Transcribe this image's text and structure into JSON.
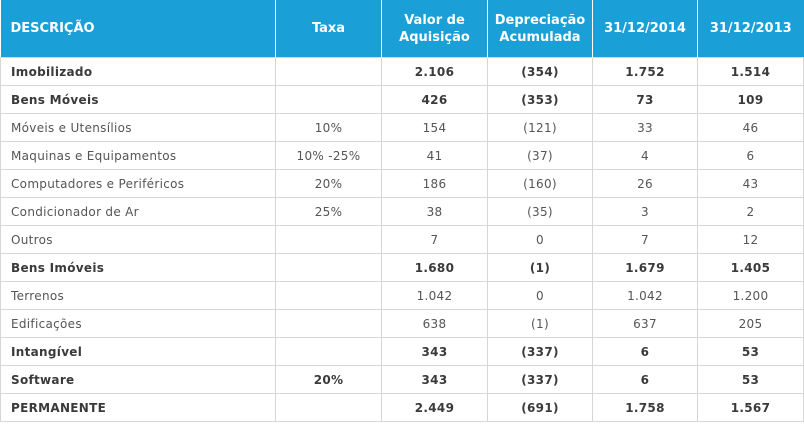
{
  "table": {
    "headers": [
      {
        "line1": "DESCRIÇÃO",
        "line2": ""
      },
      {
        "line1": "Taxa",
        "line2": ""
      },
      {
        "line1": "Valor de",
        "line2": "Aquisição"
      },
      {
        "line1": "Depreciação",
        "line2": "Acumulada"
      },
      {
        "line1": "31/12/2014",
        "line2": ""
      },
      {
        "line1": "31/12/2013",
        "line2": ""
      }
    ],
    "rows": [
      {
        "style": "bold",
        "cells": [
          "Imobilizado",
          "",
          "2.106",
          "(354)",
          "1.752",
          "1.514"
        ]
      },
      {
        "style": "bold",
        "cells": [
          "Bens Móveis",
          "",
          "426",
          "(353)",
          "73",
          "109"
        ]
      },
      {
        "style": "normal",
        "cells": [
          "Móveis e Utensílios",
          "10%",
          "154",
          "(121)",
          "33",
          "46"
        ]
      },
      {
        "style": "normal",
        "cells": [
          "Maquinas e Equipamentos",
          "10% -25%",
          "41",
          "(37)",
          "4",
          "6"
        ]
      },
      {
        "style": "normal",
        "cells": [
          "Computadores e Periféricos",
          "20%",
          "186",
          "(160)",
          "26",
          "43"
        ]
      },
      {
        "style": "normal",
        "cells": [
          "Condicionador de Ar",
          "25%",
          "38",
          "(35)",
          "3",
          "2"
        ]
      },
      {
        "style": "normal",
        "cells": [
          "Outros",
          "",
          "7",
          "0",
          "7",
          "12"
        ]
      },
      {
        "style": "bold",
        "cells": [
          "Bens Imóveis",
          "",
          "1.680",
          "(1)",
          "1.679",
          "1.405"
        ]
      },
      {
        "style": "normal",
        "cells": [
          "Terrenos",
          "",
          "1.042",
          "0",
          "1.042",
          "1.200"
        ]
      },
      {
        "style": "normal",
        "cells": [
          "Edificações",
          "",
          "638",
          "(1)",
          "637",
          "205"
        ]
      },
      {
        "style": "bold",
        "cells": [
          "Intangível",
          "",
          "343",
          "(337)",
          "6",
          "53"
        ]
      },
      {
        "style": "bold",
        "cells": [
          "Software",
          "20%",
          "343",
          "(337)",
          "6",
          "53"
        ]
      },
      {
        "style": "bold",
        "cells": [
          "PERMANENTE",
          "",
          "2.449",
          "(691)",
          "1.758",
          "1.567"
        ]
      }
    ]
  },
  "colors": {
    "header_bg": "#1a9fd6",
    "header_text": "#ffffff",
    "grid": "#d6d6d6",
    "text": "#444444"
  }
}
